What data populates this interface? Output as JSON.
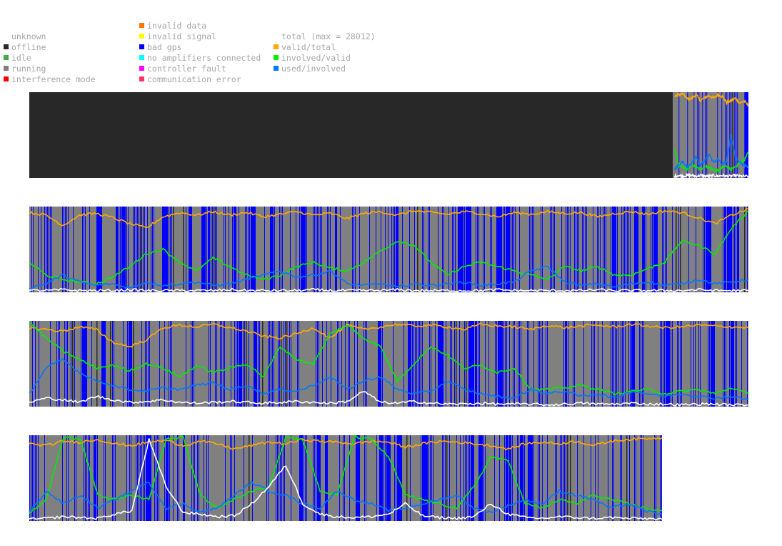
{
  "legend": {
    "status": [
      {
        "key": "unknown",
        "label": "unknown",
        "color": ""
      },
      {
        "key": "offline",
        "label": "offline",
        "color": "#282828"
      },
      {
        "key": "idle",
        "label": "idle",
        "color": "#44aa44"
      },
      {
        "key": "running",
        "label": "running",
        "color": "#808080"
      },
      {
        "key": "interference",
        "label": "interference mode",
        "color": "#ff0000"
      }
    ],
    "errors": [
      {
        "key": "invalid-data",
        "label": "invalid data",
        "color": "#ff7700"
      },
      {
        "key": "invalid-signal",
        "label": "invalid signal",
        "color": "#ffff00"
      },
      {
        "key": "bad-gps",
        "label": "bad gps",
        "color": "#0000ff"
      },
      {
        "key": "no-amplifiers",
        "label": "no amplifiers connected",
        "color": "#00ffff"
      },
      {
        "key": "controller-fault",
        "label": "controller fault",
        "color": "#ff00ff"
      },
      {
        "key": "communication-error",
        "label": "communication error",
        "color": "#ff3366"
      }
    ],
    "ratios": [
      {
        "key": "total",
        "label": "total (max = 28012)",
        "color": ""
      },
      {
        "key": "valid-total",
        "label": "valid/total",
        "color": "#ffaa00"
      },
      {
        "key": "involved-valid",
        "label": "involved/valid",
        "color": "#00ee00"
      },
      {
        "key": "used-involved",
        "label": "used/involved",
        "color": "#0077ff"
      }
    ]
  },
  "chart_data": [
    {
      "type": "line",
      "background_segments": [
        {
          "from": 0.0,
          "to": 0.895,
          "state": "offline"
        },
        {
          "from": 0.895,
          "to": 1.0,
          "state": "running"
        }
      ],
      "bad_gps_density": 0.45,
      "series": [
        {
          "name": "valid/total",
          "color": "#ffaa00",
          "start": 0.897,
          "values": [
            0.95,
            0.97,
            0.98,
            0.92,
            0.93,
            0.97,
            0.9,
            0.94,
            0.96,
            0.93,
            0.97,
            0.95,
            0.88,
            0.9,
            0.93,
            0.87,
            0.9,
            0.84
          ]
        },
        {
          "name": "involved/valid",
          "color": "#00ee00",
          "start": 0.897,
          "values": [
            0.35,
            0.15,
            0.12,
            0.1,
            0.16,
            0.12,
            0.1,
            0.14,
            0.12,
            0.1,
            0.08,
            0.12,
            0.14,
            0.1,
            0.12,
            0.18,
            0.2,
            0.3
          ]
        },
        {
          "name": "used/involved",
          "color": "#0077ff",
          "start": 0.897,
          "values": [
            0.1,
            0.15,
            0.2,
            0.12,
            0.18,
            0.25,
            0.15,
            0.2,
            0.28,
            0.18,
            0.22,
            0.15,
            0.2,
            0.5,
            0.25,
            0.18,
            0.15,
            0.12
          ]
        },
        {
          "name": "total",
          "color": "#ffffff",
          "start": 0.897,
          "values": [
            0.02,
            0.03,
            0.02,
            0.03,
            0.03,
            0.02,
            0.03,
            0.02,
            0.02,
            0.03,
            0.02,
            0.03,
            0.02,
            0.02,
            0.03,
            0.02,
            0.02,
            0.02
          ]
        }
      ]
    },
    {
      "type": "line",
      "background_segments": [
        {
          "from": 0.0,
          "to": 1.0,
          "state": "running"
        }
      ],
      "bad_gps_density": 0.55,
      "series": [
        {
          "name": "valid/total",
          "color": "#ffaa00",
          "start": 0.0,
          "values": [
            0.93,
            0.9,
            0.78,
            0.9,
            0.92,
            0.87,
            0.8,
            0.75,
            0.88,
            0.93,
            0.9,
            0.94,
            0.9,
            0.93,
            0.88,
            0.91,
            0.94,
            0.9,
            0.92,
            0.86,
            0.92,
            0.94,
            0.9,
            0.95,
            0.93,
            0.91,
            0.94,
            0.92,
            0.88,
            0.93,
            0.91,
            0.94,
            0.92,
            0.93,
            0.88,
            0.92,
            0.94,
            0.91,
            0.95,
            0.93,
            0.87,
            0.8,
            0.9,
            0.97
          ]
        },
        {
          "name": "involved/valid",
          "color": "#00ee00",
          "start": 0.0,
          "values": [
            0.35,
            0.2,
            0.15,
            0.12,
            0.1,
            0.18,
            0.3,
            0.45,
            0.5,
            0.35,
            0.25,
            0.4,
            0.3,
            0.2,
            0.15,
            0.2,
            0.3,
            0.35,
            0.28,
            0.25,
            0.35,
            0.48,
            0.6,
            0.55,
            0.35,
            0.2,
            0.3,
            0.35,
            0.3,
            0.25,
            0.2,
            0.15,
            0.3,
            0.25,
            0.3,
            0.2,
            0.2,
            0.28,
            0.35,
            0.6,
            0.55,
            0.45,
            0.75,
            0.95
          ]
        },
        {
          "name": "used/involved",
          "color": "#0077ff",
          "start": 0.0,
          "values": [
            0.05,
            0.1,
            0.2,
            0.12,
            0.08,
            0.1,
            0.05,
            0.12,
            0.08,
            0.1,
            0.12,
            0.08,
            0.1,
            0.15,
            0.2,
            0.25,
            0.18,
            0.2,
            0.25,
            0.1,
            0.08,
            0.1,
            0.06,
            0.1,
            0.08,
            0.1,
            0.12,
            0.08,
            0.1,
            0.12,
            0.25,
            0.3,
            0.12,
            0.08,
            0.1,
            0.06,
            0.1,
            0.12,
            0.08,
            0.1,
            0.15,
            0.1,
            0.12,
            0.15
          ]
        },
        {
          "name": "total",
          "color": "#ffffff",
          "start": 0.0,
          "values": [
            0.02,
            0.02,
            0.03,
            0.02,
            0.02,
            0.02,
            0.03,
            0.02,
            0.02,
            0.02,
            0.02,
            0.02,
            0.03,
            0.02,
            0.02,
            0.02,
            0.02,
            0.03,
            0.02,
            0.02,
            0.02,
            0.02,
            0.03,
            0.02,
            0.02,
            0.02,
            0.02,
            0.02,
            0.03,
            0.02,
            0.02,
            0.02,
            0.02,
            0.02,
            0.03,
            0.02,
            0.02,
            0.02,
            0.02,
            0.02,
            0.03,
            0.02,
            0.02,
            0.02
          ]
        }
      ]
    },
    {
      "type": "line",
      "background_segments": [
        {
          "from": 0.0,
          "to": 1.0,
          "state": "running"
        }
      ],
      "bad_gps_density": 0.55,
      "series": [
        {
          "name": "valid/total",
          "color": "#ffaa00",
          "start": 0.0,
          "values": [
            0.92,
            0.9,
            0.88,
            0.93,
            0.9,
            0.75,
            0.7,
            0.78,
            0.92,
            0.95,
            0.93,
            0.96,
            0.92,
            0.88,
            0.82,
            0.8,
            0.85,
            0.92,
            0.8,
            0.95,
            0.9,
            0.93,
            0.96,
            0.94,
            0.95,
            0.93,
            0.9,
            0.96,
            0.94,
            0.93,
            0.9,
            0.95,
            0.92,
            0.94,
            0.95,
            0.93,
            0.96,
            0.94,
            0.92,
            0.93,
            0.95,
            0.94,
            0.93,
            0.92
          ]
        },
        {
          "name": "involved/valid",
          "color": "#00ee00",
          "start": 0.0,
          "values": [
            0.98,
            0.8,
            0.65,
            0.55,
            0.45,
            0.48,
            0.42,
            0.5,
            0.45,
            0.35,
            0.48,
            0.4,
            0.45,
            0.5,
            0.35,
            0.7,
            0.55,
            0.5,
            0.85,
            0.95,
            0.8,
            0.7,
            0.3,
            0.5,
            0.7,
            0.6,
            0.45,
            0.48,
            0.4,
            0.45,
            0.2,
            0.2,
            0.22,
            0.25,
            0.2,
            0.15,
            0.18,
            0.2,
            0.15,
            0.18,
            0.2,
            0.15,
            0.22,
            0.15
          ]
        },
        {
          "name": "used/involved",
          "color": "#0077ff",
          "start": 0.0,
          "values": [
            0.15,
            0.45,
            0.55,
            0.4,
            0.3,
            0.25,
            0.2,
            0.18,
            0.22,
            0.2,
            0.25,
            0.28,
            0.2,
            0.25,
            0.15,
            0.2,
            0.18,
            0.25,
            0.35,
            0.2,
            0.3,
            0.35,
            0.2,
            0.15,
            0.18,
            0.3,
            0.2,
            0.15,
            0.12,
            0.1,
            0.2,
            0.15,
            0.18,
            0.12,
            0.15,
            0.1,
            0.18,
            0.15,
            0.12,
            0.15,
            0.12,
            0.1,
            0.12,
            0.08
          ]
        },
        {
          "name": "total",
          "color": "#ffffff",
          "start": 0.0,
          "values": [
            0.05,
            0.1,
            0.08,
            0.05,
            0.12,
            0.08,
            0.05,
            0.06,
            0.08,
            0.05,
            0.04,
            0.05,
            0.06,
            0.05,
            0.04,
            0.05,
            0.06,
            0.05,
            0.04,
            0.06,
            0.18,
            0.05,
            0.04,
            0.06,
            0.04,
            0.03,
            0.03,
            0.04,
            0.03,
            0.03,
            0.03,
            0.02,
            0.03,
            0.04,
            0.03,
            0.03,
            0.04,
            0.03,
            0.03,
            0.02,
            0.03,
            0.03,
            0.02,
            0.02
          ]
        }
      ]
    },
    {
      "type": "line",
      "background_segments": [
        {
          "from": 0.0,
          "to": 1.0,
          "state": "running"
        }
      ],
      "bad_gps_density": 0.55,
      "series": [
        {
          "name": "valid/total",
          "color": "#ffaa00",
          "start": 0.0,
          "values": [
            0.9,
            0.88,
            0.93,
            0.92,
            0.95,
            0.9,
            0.88,
            0.92,
            0.94,
            0.88,
            0.93,
            0.9,
            0.84,
            0.88,
            0.92,
            0.9,
            0.95,
            0.93,
            0.92,
            0.9,
            0.93,
            0.92,
            0.86,
            0.9,
            0.93,
            0.92,
            0.9,
            0.88,
            0.84,
            0.9,
            0.92,
            0.9,
            0.93,
            0.88,
            0.93,
            0.95,
            0.96,
            0.97
          ]
        },
        {
          "name": "involved/valid",
          "color": "#00ee00",
          "start": 0.0,
          "values": [
            0.1,
            0.25,
            0.98,
            0.95,
            0.3,
            0.25,
            0.3,
            0.25,
            0.95,
            0.98,
            0.3,
            0.15,
            0.25,
            0.35,
            0.4,
            0.98,
            0.95,
            0.35,
            0.3,
            0.98,
            0.95,
            0.75,
            0.3,
            0.25,
            0.2,
            0.15,
            0.4,
            0.75,
            0.7,
            0.2,
            0.15,
            0.25,
            0.2,
            0.3,
            0.25,
            0.2,
            0.15,
            0.12
          ]
        },
        {
          "name": "used/involved",
          "color": "#0077ff",
          "start": 0.0,
          "values": [
            0.1,
            0.35,
            0.2,
            0.3,
            0.15,
            0.25,
            0.35,
            0.45,
            0.15,
            0.2,
            0.1,
            0.15,
            0.3,
            0.45,
            0.35,
            0.3,
            0.2,
            0.15,
            0.35,
            0.25,
            0.2,
            0.12,
            0.15,
            0.2,
            0.25,
            0.3,
            0.15,
            0.1,
            0.18,
            0.25,
            0.2,
            0.35,
            0.3,
            0.25,
            0.15,
            0.2,
            0.12,
            0.08
          ]
        },
        {
          "name": "total",
          "color": "#ffffff",
          "start": 0.0,
          "values": [
            0.02,
            0.03,
            0.05,
            0.04,
            0.03,
            0.08,
            0.12,
            0.95,
            0.4,
            0.1,
            0.08,
            0.05,
            0.06,
            0.2,
            0.4,
            0.65,
            0.2,
            0.08,
            0.05,
            0.04,
            0.05,
            0.08,
            0.2,
            0.06,
            0.04,
            0.03,
            0.05,
            0.2,
            0.08,
            0.04,
            0.03,
            0.05,
            0.04,
            0.03,
            0.04,
            0.03,
            0.03,
            0.02
          ]
        }
      ]
    }
  ]
}
